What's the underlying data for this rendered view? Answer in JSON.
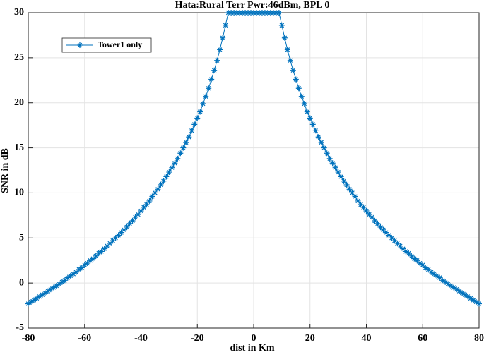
{
  "chart_data": {
    "type": "line",
    "title": "Hata:Rural  Terr Pwr:46dBm, BPL 0",
    "x_label": "dist in Km",
    "y_label": "SNR in dB",
    "x": [
      -80,
      -79,
      -78,
      -77,
      -76,
      -75,
      -74,
      -73,
      -72,
      -71,
      -70,
      -69,
      -68,
      -67,
      -66,
      -65,
      -64,
      -63,
      -62,
      -61,
      -60,
      -59,
      -58,
      -57,
      -56,
      -55,
      -54,
      -53,
      -52,
      -51,
      -50,
      -49,
      -48,
      -47,
      -46,
      -45,
      -44,
      -43,
      -42,
      -41,
      -40,
      -39,
      -38,
      -37,
      -36,
      -35,
      -34,
      -33,
      -32,
      -31,
      -30,
      -29,
      -28,
      -27,
      -26,
      -25,
      -24,
      -23,
      -22,
      -21,
      -20,
      -19,
      -18,
      -17,
      -16,
      -15,
      -14,
      -13,
      -12,
      -11,
      -10,
      -9,
      -8,
      -7,
      -6,
      -5,
      -4,
      -3,
      -2,
      -1,
      0,
      1,
      2,
      3,
      4,
      5,
      6,
      7,
      8,
      9,
      10,
      11,
      12,
      13,
      14,
      15,
      16,
      17,
      18,
      19,
      20,
      21,
      22,
      23,
      24,
      25,
      26,
      27,
      28,
      29,
      30,
      31,
      32,
      33,
      34,
      35,
      36,
      37,
      38,
      39,
      40,
      41,
      42,
      43,
      44,
      45,
      46,
      47,
      48,
      49,
      50,
      51,
      52,
      53,
      54,
      55,
      56,
      57,
      58,
      59,
      60,
      61,
      62,
      63,
      64,
      65,
      66,
      67,
      68,
      69,
      70,
      71,
      72,
      73,
      74,
      75,
      76,
      77,
      78,
      79,
      80
    ],
    "series": [
      {
        "name": "Tower1 only",
        "color": "#0072bd",
        "marker": "asterisk",
        "values": [
          -2.3,
          -2.1,
          -1.9,
          -1.7,
          -1.5,
          -1.3,
          -1.1,
          -0.9,
          -0.7,
          -0.5,
          -0.3,
          -0.1,
          0.1,
          0.3,
          0.6,
          0.8,
          1.0,
          1.2,
          1.5,
          1.7,
          2.0,
          2.2,
          2.5,
          2.7,
          3.0,
          3.3,
          3.5,
          3.8,
          4.1,
          4.4,
          4.7,
          5.0,
          5.3,
          5.6,
          5.9,
          6.2,
          6.6,
          6.9,
          7.3,
          7.6,
          8.0,
          8.4,
          8.7,
          9.1,
          9.6,
          10.0,
          10.4,
          10.9,
          11.3,
          11.8,
          12.3,
          12.8,
          13.3,
          13.8,
          14.4,
          15.0,
          15.6,
          16.2,
          16.9,
          17.6,
          18.3,
          19.0,
          19.9,
          20.7,
          21.6,
          22.6,
          23.6,
          24.7,
          25.9,
          27.2,
          28.6,
          30,
          30,
          30,
          30,
          30,
          30,
          30,
          30,
          30,
          30,
          30,
          30,
          30,
          30,
          30,
          30,
          30,
          30,
          30,
          28.6,
          27.2,
          25.9,
          24.7,
          23.6,
          22.6,
          21.6,
          20.7,
          19.9,
          19.0,
          18.3,
          17.6,
          16.9,
          16.2,
          15.6,
          15.0,
          14.4,
          13.8,
          13.3,
          12.8,
          12.3,
          11.8,
          11.3,
          10.9,
          10.4,
          10.0,
          9.6,
          9.1,
          8.7,
          8.4,
          8.0,
          7.6,
          7.3,
          6.9,
          6.6,
          6.2,
          5.9,
          5.6,
          5.3,
          5.0,
          4.7,
          4.4,
          4.1,
          3.8,
          3.5,
          3.3,
          3.0,
          2.7,
          2.5,
          2.2,
          2.0,
          1.7,
          1.5,
          1.2,
          1.0,
          0.8,
          0.6,
          0.3,
          0.1,
          -0.1,
          -0.3,
          -0.5,
          -0.7,
          -0.9,
          -1.1,
          -1.3,
          -1.5,
          -1.7,
          -1.9,
          -2.1,
          -2.3
        ]
      }
    ],
    "xlim": [
      -80,
      80
    ],
    "xticks": [
      -80,
      -60,
      -40,
      -20,
      0,
      20,
      40,
      60,
      80
    ],
    "ylim": [
      -5,
      30
    ],
    "yticks": [
      -5,
      0,
      5,
      10,
      15,
      20,
      25,
      30
    ],
    "grid": true,
    "legend": "upper left"
  }
}
